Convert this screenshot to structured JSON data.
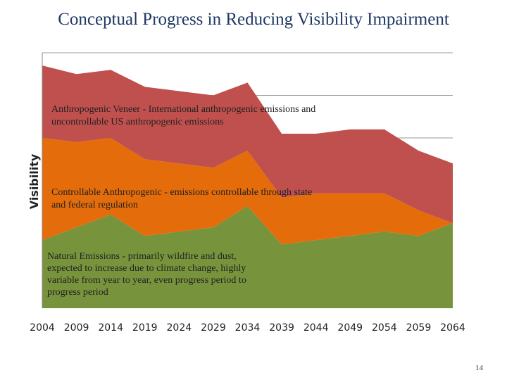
{
  "chart_data": {
    "type": "stacked_area",
    "title": "Conceptual Progress in Reducing Visibility  Impairment",
    "y_label": "Visibility",
    "categories": [
      "2004",
      "2009",
      "2014",
      "2019",
      "2024",
      "2029",
      "2034",
      "2039",
      "2044",
      "2049",
      "2054",
      "2059",
      "2064"
    ],
    "series": [
      {
        "name": "Natural Emissions - primarily wildfire and dust, expected to increase due to climate change, highly variable from year to year, even progress period to progress period",
        "color": "#77933c",
        "values": [
          1.6,
          1.9,
          2.2,
          1.7,
          1.8,
          1.9,
          2.4,
          1.5,
          1.6,
          1.7,
          1.8,
          1.7,
          2.0
        ]
      },
      {
        "name": "Controllable Anthropogenic - emissions controllable through state and federal regulation",
        "color": "#e46c0a",
        "values": [
          2.4,
          2.0,
          1.8,
          1.8,
          1.6,
          1.4,
          1.3,
          1.1,
          1.1,
          1.0,
          0.9,
          0.6,
          0.0
        ]
      },
      {
        "name": "Anthropogenic Veneer - International anthropogenic emissions and uncontrollable US anthropogenic emissions",
        "color": "#c0504d",
        "values": [
          1.7,
          1.6,
          1.6,
          1.7,
          1.7,
          1.7,
          1.6,
          1.5,
          1.4,
          1.5,
          1.5,
          1.4,
          1.4
        ]
      }
    ],
    "ylim": [
      0,
      6
    ],
    "yticks": [
      1,
      2,
      3,
      4,
      5,
      6
    ],
    "grid": true
  },
  "slide": {
    "page_number": "14"
  }
}
